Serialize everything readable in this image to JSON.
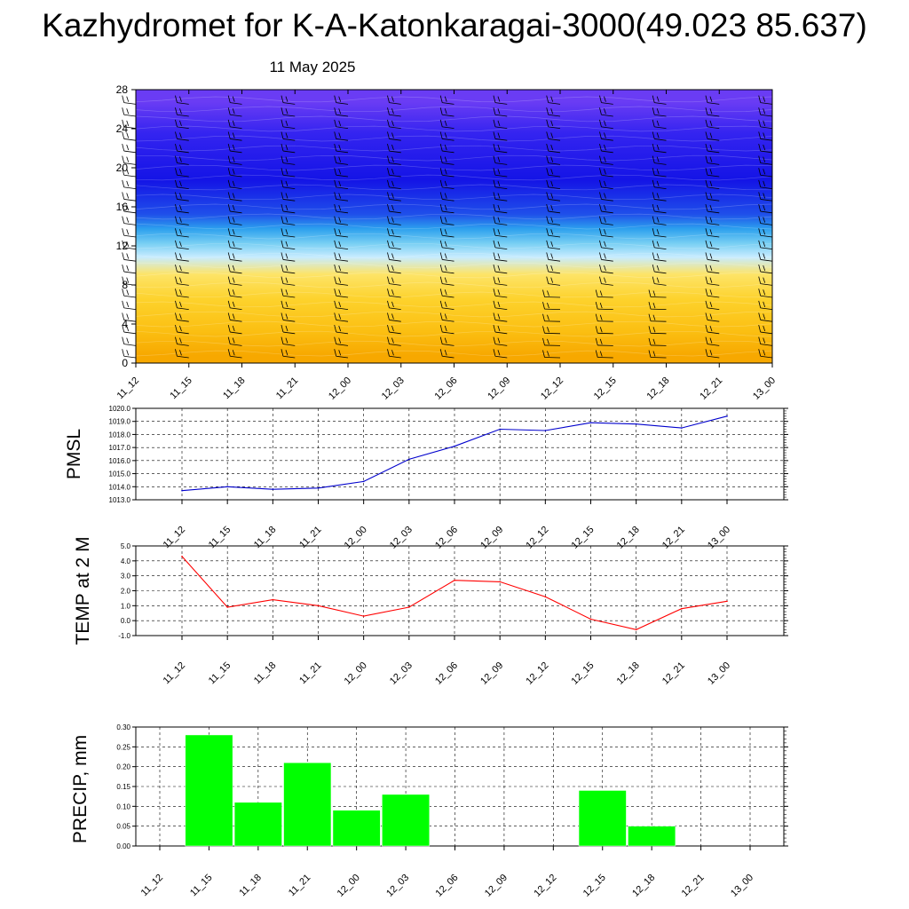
{
  "header": {
    "title": "Kazhydromet for K-A-Katonkaragai-3000(49.023 85.637)",
    "date": "11 May 2025"
  },
  "chart_data": [
    {
      "type": "heatmap",
      "title": "",
      "xlabel": "",
      "ylabel": "",
      "x": [
        "11_12",
        "11_15",
        "11_18",
        "11_21",
        "12_00",
        "12_03",
        "12_06",
        "12_09",
        "12_12",
        "12_15",
        "12_18",
        "12_21",
        "13_00"
      ],
      "yticks": [
        "0",
        "4",
        "8",
        "12",
        "16",
        "20",
        "24",
        "28"
      ],
      "ylim": [
        0,
        28
      ],
      "layers": [
        {
          "y_from": 0,
          "y_to": 1.5,
          "color": "#f7a800"
        },
        {
          "y_from": 1.5,
          "y_to": 5,
          "color": "#fbbf12"
        },
        {
          "y_from": 5,
          "y_to": 8,
          "color": "#fdd22c"
        },
        {
          "y_from": 8,
          "y_to": 10.2,
          "color": "#fde468"
        },
        {
          "y_from": 10.2,
          "y_to": 11.5,
          "color": "#c8ecff"
        },
        {
          "y_from": 11.5,
          "y_to": 13,
          "color": "#78cff3"
        },
        {
          "y_from": 13,
          "y_to": 14.5,
          "color": "#2ca0ee"
        },
        {
          "y_from": 14.5,
          "y_to": 16,
          "color": "#1f4fea"
        },
        {
          "y_from": 16,
          "y_to": 21.5,
          "color": "#1414e6"
        },
        {
          "y_from": 21.5,
          "y_to": 25.5,
          "color": "#3424f0"
        },
        {
          "y_from": 25.5,
          "y_to": 28,
          "color": "#6a3cf4"
        }
      ],
      "wind_barbs": "present"
    },
    {
      "type": "line",
      "ylabel": "PMSL",
      "x": [
        "11_12",
        "11_15",
        "11_18",
        "11_21",
        "12_00",
        "12_03",
        "12_06",
        "12_09",
        "12_12",
        "12_15",
        "12_18",
        "12_21",
        "13_00"
      ],
      "yticks": [
        "1013.0",
        "1014.0",
        "1015.0",
        "1016.0",
        "1017.0",
        "1018.0",
        "1019.0",
        "1020.0"
      ],
      "ylim": [
        1013,
        1020
      ],
      "series": [
        {
          "values": [
            1013.7,
            1014.0,
            1013.8,
            1013.9,
            1014.4,
            1016.1,
            1017.1,
            1018.4,
            1018.3,
            1018.9,
            1018.8,
            1018.5,
            1019.4
          ]
        }
      ],
      "color": "#0000cc",
      "grid": true
    },
    {
      "type": "line",
      "ylabel": "TEMP at 2 M",
      "x": [
        "11_12",
        "11_15",
        "11_18",
        "11_21",
        "12_00",
        "12_03",
        "12_06",
        "12_09",
        "12_12",
        "12_15",
        "12_18",
        "12_21",
        "13_00"
      ],
      "yticks": [
        "-1.0",
        "0.0",
        "1.0",
        "2.0",
        "3.0",
        "4.0",
        "5.0"
      ],
      "ylim": [
        -1,
        5
      ],
      "series": [
        {
          "values": [
            4.3,
            0.9,
            1.4,
            1.0,
            0.3,
            0.9,
            2.7,
            2.6,
            1.6,
            0.1,
            -0.6,
            0.8,
            1.3
          ]
        }
      ],
      "color": "#ff0000",
      "grid": true
    },
    {
      "type": "bar",
      "ylabel": "PRECIP, mm",
      "categories": [
        "11_12",
        "11_15",
        "11_18",
        "11_21",
        "12_00",
        "12_03",
        "12_06",
        "12_09",
        "12_12",
        "12_15",
        "12_18",
        "12_21",
        "13_00"
      ],
      "values": [
        0,
        0.28,
        0.11,
        0.21,
        0.09,
        0.13,
        0,
        0,
        0,
        0.14,
        0.05,
        0,
        0
      ],
      "yticks": [
        "0.00",
        "0.05",
        "0.10",
        "0.15",
        "0.20",
        "0.25",
        "0.30"
      ],
      "ylim": [
        0,
        0.3
      ],
      "color": "#00ff00",
      "grid": true
    }
  ]
}
